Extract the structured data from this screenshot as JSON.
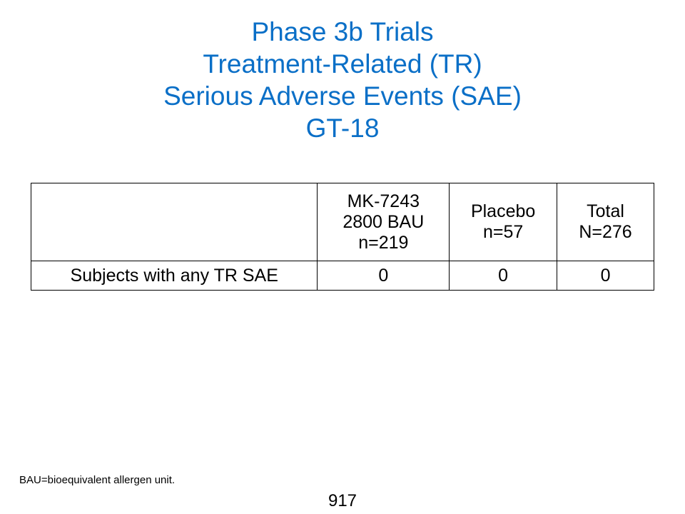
{
  "title": {
    "lines": [
      "Phase 3b Trials",
      "Treatment-Related (TR)",
      "Serious Adverse Events (SAE)",
      "GT-18"
    ]
  },
  "table": {
    "headers": {
      "label": "",
      "mk": [
        "MK-7243",
        "2800 BAU",
        "n=219"
      ],
      "placebo": [
        "Placebo",
        "n=57"
      ],
      "total": [
        "Total",
        "N=276"
      ]
    },
    "rows": [
      {
        "label": "Subjects with any TR SAE",
        "mk": "0",
        "placebo": "0",
        "total": "0"
      }
    ]
  },
  "footnote": "BAU=bioequivalent allergen unit.",
  "page_number": "917",
  "colors": {
    "title": "#0a6fc7",
    "header_rule": "#3f7fd0"
  }
}
